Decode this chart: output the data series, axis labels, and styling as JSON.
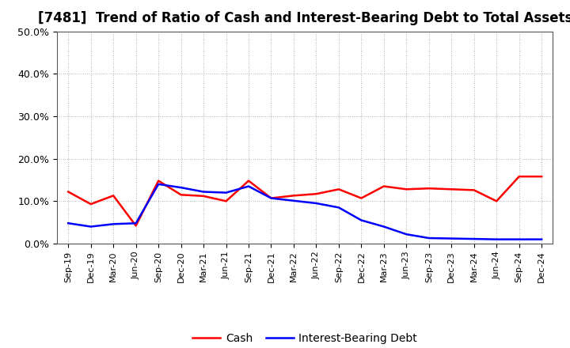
{
  "title": "[7481]  Trend of Ratio of Cash and Interest-Bearing Debt to Total Assets",
  "x_labels": [
    "Sep-19",
    "Dec-19",
    "Mar-20",
    "Jun-20",
    "Sep-20",
    "Dec-20",
    "Mar-21",
    "Jun-21",
    "Sep-21",
    "Dec-21",
    "Mar-22",
    "Jun-22",
    "Sep-22",
    "Dec-22",
    "Mar-23",
    "Jun-23",
    "Sep-23",
    "Dec-23",
    "Mar-24",
    "Jun-24",
    "Sep-24",
    "Dec-24"
  ],
  "cash": [
    0.122,
    0.093,
    0.113,
    0.042,
    0.148,
    0.115,
    0.112,
    0.1,
    0.148,
    0.107,
    0.113,
    0.117,
    0.128,
    0.107,
    0.135,
    0.128,
    0.13,
    0.128,
    0.126,
    0.1,
    0.158,
    0.158
  ],
  "interest_bearing_debt": [
    0.048,
    0.04,
    0.046,
    0.048,
    0.14,
    0.132,
    0.122,
    0.12,
    0.135,
    0.107,
    0.101,
    0.095,
    0.085,
    0.055,
    0.04,
    0.022,
    0.013,
    0.012,
    0.011,
    0.01,
    0.01,
    0.01
  ],
  "cash_color": "#ff0000",
  "debt_color": "#0000ff",
  "background_color": "#ffffff",
  "grid_color": "#999999",
  "ylim": [
    0.0,
    0.5
  ],
  "yticks": [
    0.0,
    0.1,
    0.2,
    0.3,
    0.4,
    0.5
  ],
  "title_fontsize": 12,
  "tick_fontsize": 9,
  "legend_cash": "Cash",
  "legend_debt": "Interest-Bearing Debt",
  "line_width": 1.8
}
